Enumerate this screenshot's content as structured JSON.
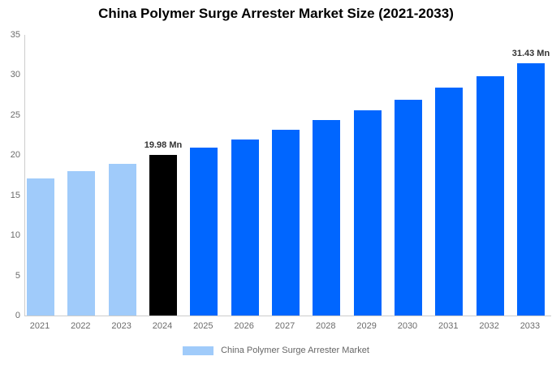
{
  "title": "China Polymer Surge Arrester Market Size (2021-2033)",
  "legend": {
    "label": "China Polymer Surge Arrester Market",
    "swatch_color": "#A0CBFA"
  },
  "colors": {
    "historical_bar": "#A0CBFA",
    "highlight_bar": "#000000",
    "forecast_bar": "#0066FF",
    "axis_line": "#CCCCCC",
    "tick_text": "#6B6B6B",
    "annotation_text": "#333333",
    "title_text": "#000000"
  },
  "chart_data": {
    "type": "bar",
    "title": "China Polymer Surge Arrester Market Size (2021-2033)",
    "series_name": "China Polymer Surge Arrester Market",
    "categories": [
      "2021",
      "2022",
      "2023",
      "2024",
      "2025",
      "2026",
      "2027",
      "2028",
      "2029",
      "2030",
      "2031",
      "2032",
      "2033"
    ],
    "values": [
      17.1,
      17.98,
      18.9,
      19.98,
      20.92,
      22.0,
      23.14,
      24.36,
      25.6,
      26.9,
      28.4,
      29.8,
      31.43
    ],
    "unit": "Mn",
    "bar_colors": [
      "#A0CBFA",
      "#A0CBFA",
      "#A0CBFA",
      "#000000",
      "#0066FF",
      "#0066FF",
      "#0066FF",
      "#0066FF",
      "#0066FF",
      "#0066FF",
      "#0066FF",
      "#0066FF",
      "#0066FF"
    ],
    "annotations": [
      {
        "category": "2024",
        "text": "19.98 Mn"
      },
      {
        "category": "2033",
        "text": "31.43 Mn"
      }
    ],
    "xlabel": "",
    "ylabel": "",
    "ylim": [
      0,
      35
    ],
    "y_ticks": [
      0,
      5,
      10,
      15,
      20,
      25,
      30,
      35
    ],
    "grid": false,
    "legend_position": "bottom"
  }
}
